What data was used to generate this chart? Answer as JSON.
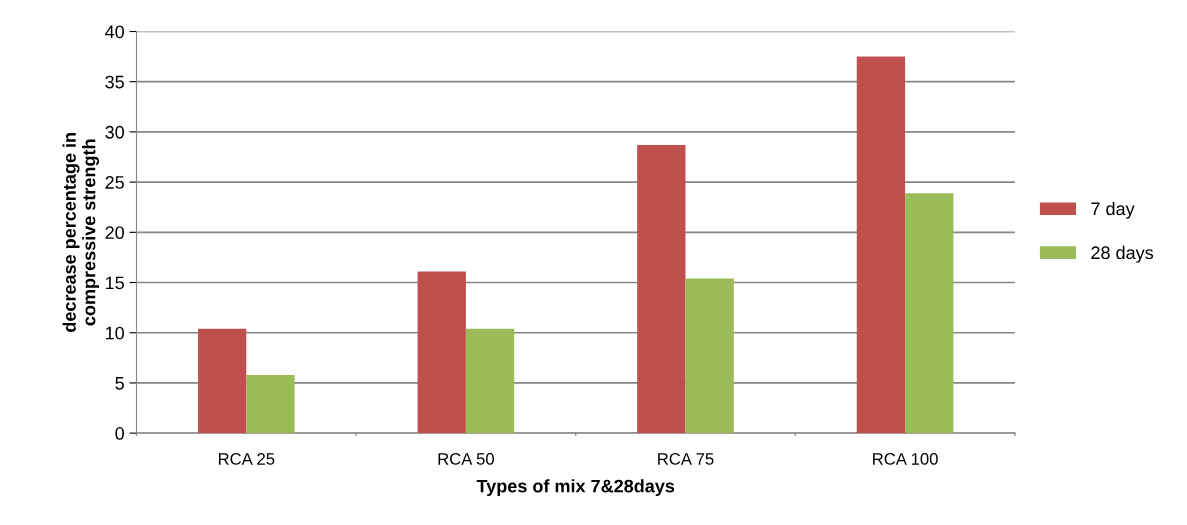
{
  "chart_data": {
    "type": "bar",
    "xlabel": "Types of mix 7&28days",
    "ylabel": "decrease percentage in\ncompressive strength",
    "categories": [
      "RCA 25",
      "RCA 50",
      "RCA 75",
      "RCA 100"
    ],
    "series": [
      {
        "name": "7 day",
        "color": "#c0504d",
        "values": [
          10.4,
          16.1,
          28.7,
          37.5
        ]
      },
      {
        "name": "28 days",
        "color": "#9bbb59",
        "values": [
          5.8,
          10.4,
          15.4,
          23.9
        ]
      }
    ],
    "ylim": [
      0,
      40
    ],
    "yticks": [
      0,
      5,
      10,
      15,
      20,
      25,
      30,
      35,
      40
    ],
    "grid": "y",
    "legend": "right"
  }
}
